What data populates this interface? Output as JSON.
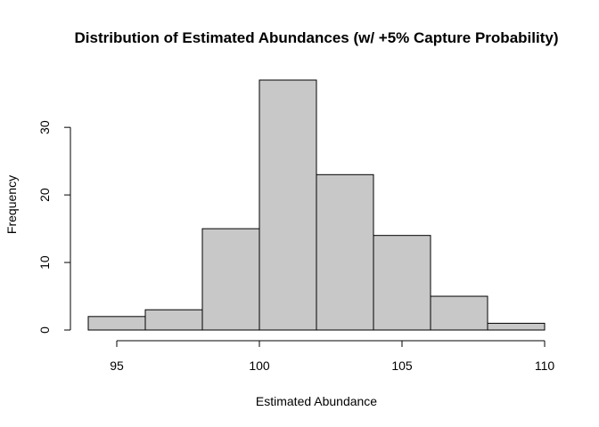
{
  "chart_data": {
    "type": "bar",
    "subtype": "histogram",
    "title": "Distribution of Estimated Abundances (w/ +5% Capture Probability)",
    "xlabel": "Estimated Abundance",
    "ylabel": "Frequency",
    "bins": [
      {
        "start": 94,
        "end": 96,
        "count": 2
      },
      {
        "start": 96,
        "end": 98,
        "count": 3
      },
      {
        "start": 98,
        "end": 100,
        "count": 15
      },
      {
        "start": 100,
        "end": 102,
        "count": 37
      },
      {
        "start": 102,
        "end": 104,
        "count": 23
      },
      {
        "start": 104,
        "end": 106,
        "count": 14
      },
      {
        "start": 106,
        "end": 108,
        "count": 5
      },
      {
        "start": 108,
        "end": 110,
        "count": 1
      }
    ],
    "xlim": [
      94,
      110
    ],
    "ylim": [
      0,
      37
    ],
    "x_ticks": [
      95,
      100,
      105,
      110
    ],
    "y_ticks": [
      0,
      10,
      20,
      30
    ],
    "grid": false,
    "colors": {
      "bar_fill": "#c8c8c8",
      "bar_stroke": "#000000",
      "axis": "#000000",
      "text": "#000000"
    }
  }
}
